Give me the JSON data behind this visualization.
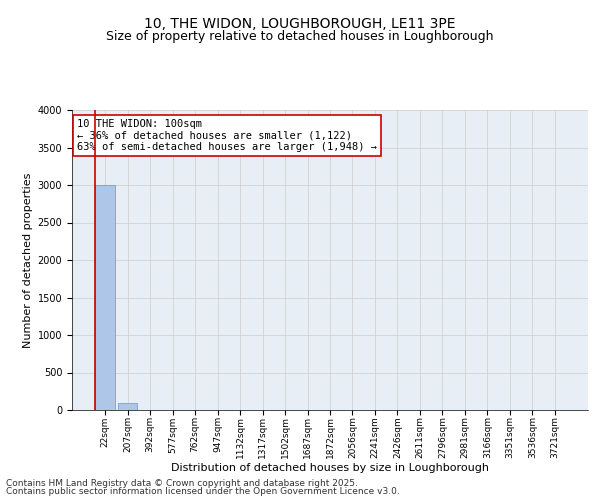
{
  "title_line1": "10, THE WIDON, LOUGHBOROUGH, LE11 3PE",
  "title_line2": "Size of property relative to detached houses in Loughborough",
  "xlabel": "Distribution of detached houses by size in Loughborough",
  "ylabel": "Number of detached properties",
  "categories": [
    "22sqm",
    "207sqm",
    "392sqm",
    "577sqm",
    "762sqm",
    "947sqm",
    "1132sqm",
    "1317sqm",
    "1502sqm",
    "1687sqm",
    "1872sqm",
    "2056sqm",
    "2241sqm",
    "2426sqm",
    "2611sqm",
    "2796sqm",
    "2981sqm",
    "3166sqm",
    "3351sqm",
    "3536sqm",
    "3721sqm"
  ],
  "values": [
    3000,
    100,
    0,
    0,
    0,
    0,
    0,
    0,
    0,
    0,
    0,
    0,
    0,
    0,
    0,
    0,
    0,
    0,
    0,
    0,
    0
  ],
  "bar_color": "#aec6e8",
  "bar_edgecolor": "#5a9ad4",
  "ylim": [
    0,
    4000
  ],
  "yticks": [
    0,
    500,
    1000,
    1500,
    2000,
    2500,
    3000,
    3500,
    4000
  ],
  "annotation_text": "10 THE WIDON: 100sqm\n← 36% of detached houses are smaller (1,122)\n63% of semi-detached houses are larger (1,948) →",
  "annotation_facecolor": "white",
  "annotation_edgecolor": "#cc0000",
  "property_line_color": "#cc0000",
  "grid_color": "#cccccc",
  "background_color": "#e8eef5",
  "footnote_line1": "Contains HM Land Registry data © Crown copyright and database right 2025.",
  "footnote_line2": "Contains public sector information licensed under the Open Government Licence v3.0.",
  "title_fontsize": 10,
  "subtitle_fontsize": 9,
  "tick_fontsize": 6.5,
  "ylabel_fontsize": 8,
  "xlabel_fontsize": 8,
  "annotation_fontsize": 7.5,
  "footnote_fontsize": 6.5
}
